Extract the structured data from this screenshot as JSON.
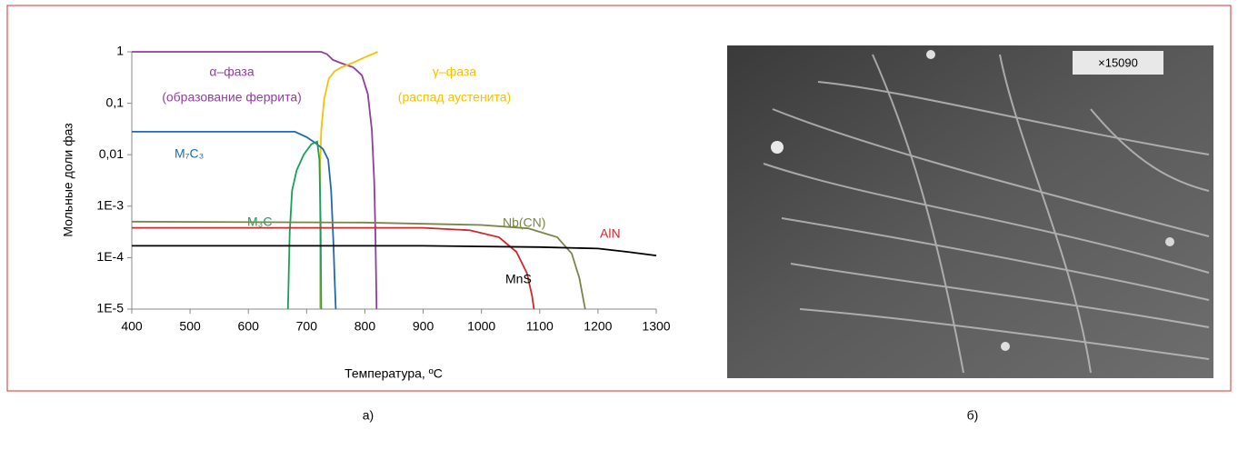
{
  "chart_data": {
    "type": "line",
    "log_y": true,
    "xlabel": "Температура, ºC",
    "ylabel": "Мольные доли фаз",
    "xlim": [
      400,
      1300
    ],
    "xticks": [
      400,
      500,
      600,
      700,
      800,
      900,
      1000,
      1100,
      1200,
      1300
    ],
    "ylim": [
      1e-05,
      1
    ],
    "yticks": [
      {
        "value": 1e-05,
        "label": "1E-5"
      },
      {
        "value": 0.0001,
        "label": "1E-4"
      },
      {
        "value": 0.001,
        "label": "1E-3"
      },
      {
        "value": 0.01,
        "label": "0,01"
      },
      {
        "value": 0.1,
        "label": "0,1"
      },
      1
    ],
    "grid": false,
    "series": [
      {
        "name": "α–фаза",
        "note": "(образование феррита)",
        "color": "#8e3f9e",
        "x": [
          400,
          725,
          735,
          745,
          760,
          780,
          795,
          805,
          812,
          816,
          818,
          820
        ],
        "values": [
          1,
          1,
          0.9,
          0.7,
          0.6,
          0.5,
          0.35,
          0.15,
          0.03,
          0.003,
          0.0003,
          1e-05
        ]
      },
      {
        "name": "γ–фаза",
        "note": "(распад аустенита)",
        "color": "#f2c200",
        "x": [
          723,
          723,
          725,
          730,
          738,
          748,
          760,
          780,
          800,
          822
        ],
        "values": [
          1e-05,
          0.005,
          0.03,
          0.12,
          0.3,
          0.42,
          0.5,
          0.62,
          0.78,
          1
        ]
      },
      {
        "name": "M₇C₃",
        "color": "#1f6aad",
        "x": [
          400,
          680,
          700,
          715,
          728,
          737,
          742,
          746,
          748,
          750
        ],
        "values": [
          0.028,
          0.028,
          0.022,
          0.017,
          0.013,
          0.008,
          0.002,
          0.0002,
          4e-05,
          1e-05
        ]
      },
      {
        "name": "M₃C",
        "color": "#17a05a",
        "x": [
          668,
          671,
          675,
          683,
          695,
          708,
          718,
          722,
          724,
          725
        ],
        "values": [
          1e-05,
          0.0003,
          0.002,
          0.005,
          0.01,
          0.016,
          0.018,
          0.008,
          0.0005,
          1e-05
        ]
      },
      {
        "name": "Nb(CN)",
        "color": "#7b8447",
        "x": [
          400,
          800,
          1000,
          1080,
          1130,
          1155,
          1168,
          1175,
          1178
        ],
        "values": [
          0.0005,
          0.00048,
          0.00043,
          0.00037,
          0.00025,
          0.00012,
          4e-05,
          1.5e-05,
          1e-05
        ]
      },
      {
        "name": "AlN",
        "color": "#d0262e",
        "x": [
          400,
          900,
          980,
          1030,
          1060,
          1078,
          1087,
          1090
        ],
        "values": [
          0.00038,
          0.00038,
          0.00034,
          0.00025,
          0.00013,
          5e-05,
          1.8e-05,
          1e-05
        ]
      },
      {
        "name": "MnS",
        "color": "#000000",
        "x": [
          400,
          900,
          1100,
          1200,
          1250,
          1300
        ],
        "values": [
          0.00017,
          0.00017,
          0.00016,
          0.00015,
          0.00013,
          0.00011
        ]
      }
    ]
  },
  "micrograph_label": "×15090",
  "captions": [
    "а)",
    "б)"
  ]
}
